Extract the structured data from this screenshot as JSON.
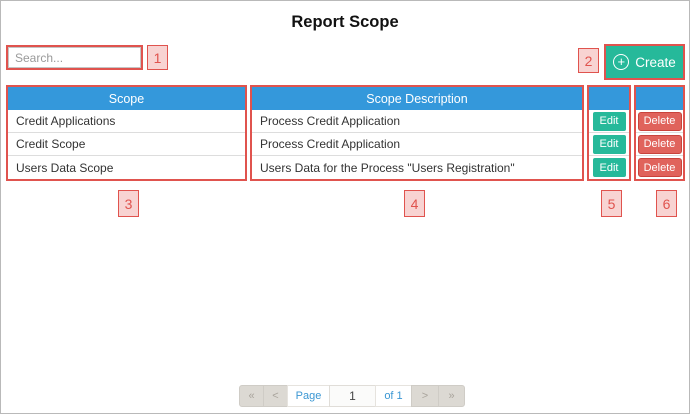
{
  "page": {
    "title": "Report Scope"
  },
  "toolbar": {
    "search_placeholder": "Search...",
    "create_label": "Create",
    "create_icon": "plus-circle-icon",
    "plus_glyph": "+"
  },
  "table": {
    "columns": [
      {
        "header": "Scope"
      },
      {
        "header": "Scope Description"
      },
      {
        "header": ""
      },
      {
        "header": ""
      }
    ],
    "actions": {
      "edit_label": "Edit",
      "delete_label": "Delete"
    },
    "rows": [
      {
        "scope": "Credit Applications",
        "description": "Process Credit Application"
      },
      {
        "scope": "Credit Scope",
        "description": "Process Credit Application"
      },
      {
        "scope": "Users Data Scope",
        "description": "Users Data for the Process \"Users Registration\""
      }
    ]
  },
  "annotations": {
    "labels": [
      "1",
      "2",
      "3",
      "4",
      "5",
      "6"
    ]
  },
  "pagination": {
    "first": "«",
    "prev": "<",
    "page_label": "Page",
    "current": "1",
    "of_label": "of 1",
    "next": ">",
    "last": "»"
  },
  "colors": {
    "header_blue": "#3498db",
    "button_teal": "#26b99a",
    "delete_red": "#e0635c",
    "annotation_red": "#e0534e",
    "pagination_blue": "#3b97d3"
  }
}
